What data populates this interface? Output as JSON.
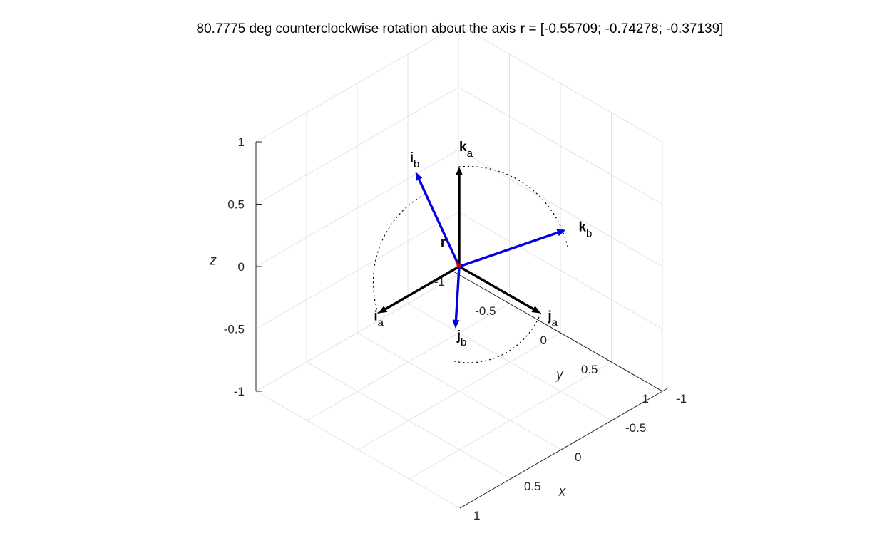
{
  "chart_data": {
    "type": "3d-vector-plot",
    "title": {
      "prefix": "80.7775 deg counterclockwise rotation about the axis ",
      "bold_symbol": "r",
      "suffix": " = [-0.55709; -0.74278; -0.37139]"
    },
    "rotation_angle_deg": 80.7775,
    "rotation_axis": [
      -0.55709,
      -0.74278,
      -0.37139
    ],
    "axes": {
      "x": {
        "label": "x",
        "range": [
          -1,
          1
        ],
        "ticks": [
          "-1",
          "-0.5",
          "0",
          "0.5",
          "1"
        ],
        "tick_values": [
          -1,
          -0.5,
          0,
          0.5,
          1
        ]
      },
      "y": {
        "label": "y",
        "range": [
          -1,
          1
        ],
        "ticks": [
          "-1",
          "-0.5",
          "0",
          "0.5",
          "1"
        ],
        "tick_values": [
          -1,
          -0.5,
          0,
          0.5,
          1
        ]
      },
      "z": {
        "label": "z",
        "range": [
          -1,
          1
        ],
        "ticks": [
          "-1",
          "-0.5",
          "0",
          "0.5",
          "1"
        ],
        "tick_values": [
          -1,
          -0.5,
          0,
          0.5,
          1
        ]
      }
    },
    "grid": true,
    "vectors": [
      {
        "name": "ia",
        "main": "i",
        "sub": "a",
        "color": "#000000",
        "vec": [
          1,
          0,
          0
        ],
        "length": 0.8
      },
      {
        "name": "ja",
        "main": "j",
        "sub": "a",
        "color": "#000000",
        "vec": [
          0,
          1,
          0
        ],
        "length": 0.8
      },
      {
        "name": "ka",
        "main": "k",
        "sub": "a",
        "color": "#000000",
        "vec": [
          0,
          0,
          1
        ],
        "length": 0.8
      },
      {
        "name": "ib",
        "main": "i",
        "sub": "b",
        "color": "#0000e0",
        "vec": [
          0.2407,
          -0.2963,
          0.9242
        ],
        "length": 0.8
      },
      {
        "name": "jb",
        "main": "j",
        "sub": "b",
        "color": "#0000e0",
        "vec": [
          0.7315,
          0.6806,
          0.0407
        ],
        "length": 0.8
      },
      {
        "name": "kb",
        "main": "k",
        "sub": "b",
        "color": "#0000e0",
        "vec": [
          -0.6411,
          0.6699,
          0.3806
        ],
        "length": 0.8
      },
      {
        "name": "r",
        "main": "r",
        "sub": "",
        "color": "#d00000",
        "vec": [
          -0.55709,
          -0.74278,
          -0.37139
        ],
        "length": 0.15
      }
    ],
    "rotation_arcs": true
  }
}
